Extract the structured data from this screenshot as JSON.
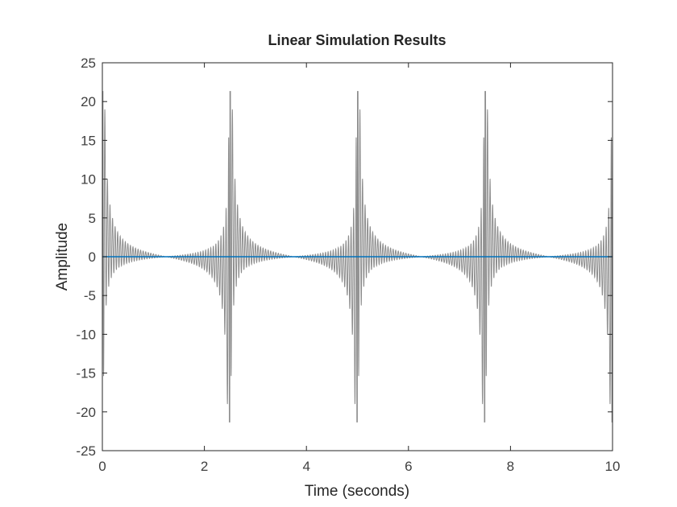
{
  "chart_data": {
    "type": "line",
    "title": "Linear Simulation Results",
    "xlabel": "Time (seconds)",
    "ylabel": "Amplitude",
    "xlim": [
      0,
      10
    ],
    "ylim": [
      -25,
      25
    ],
    "xticks": [
      0,
      2,
      4,
      6,
      8,
      10
    ],
    "yticks": [
      -25,
      -20,
      -15,
      -10,
      -5,
      0,
      5,
      10,
      15,
      20,
      25
    ],
    "grid": false,
    "legend": "none",
    "series": [
      {
        "role": "input",
        "color": "#8c8c8c",
        "description_values": {
          "period": 2.5,
          "peak": 21.2,
          "secondary_peak": 6.2,
          "ripple_frequency_hz": 20
        },
        "x": [
          0,
          0.02,
          0.05,
          0.08,
          0.1,
          0.15,
          0.2,
          0.3,
          0.5,
          0.8,
          1.25,
          1.7,
          2.0,
          2.2,
          2.35,
          2.42,
          2.45,
          2.48,
          2.5,
          2.52,
          2.55,
          2.58,
          2.6,
          2.65,
          2.7,
          2.8,
          3.0,
          3.3,
          3.75,
          4.2,
          4.5,
          4.7,
          4.85,
          4.92,
          4.95,
          4.98,
          5.0,
          5.02,
          5.05,
          5.08,
          5.1,
          5.15,
          5.2,
          5.3,
          5.5,
          5.8,
          6.25,
          6.7,
          7.0,
          7.2,
          7.35,
          7.42,
          7.45,
          7.48,
          7.5,
          7.52,
          7.55,
          7.58,
          7.6,
          7.65,
          7.7,
          7.8,
          8.0,
          8.3,
          8.75,
          9.2,
          9.5,
          9.7,
          9.85,
          9.92,
          9.95,
          9.98,
          10.0
        ],
        "y": [
          21.2,
          15,
          5,
          6.2,
          2.5,
          3.5,
          1.8,
          1.2,
          0.6,
          0.3,
          0,
          -0.3,
          -0.6,
          -1.2,
          -1.8,
          -3.5,
          -2.5,
          -6.2,
          -21.2,
          21.2,
          15,
          5,
          6.2,
          2.5,
          3.5,
          1.8,
          1.2,
          0.6,
          0,
          -0.3,
          -0.6,
          -1.2,
          -1.8,
          -3.5,
          -2.5,
          -6.2,
          -21.2,
          21.2,
          15,
          5,
          6.2,
          2.5,
          3.5,
          1.8,
          1.2,
          0.6,
          0,
          -0.3,
          -0.6,
          -1.2,
          -1.8,
          -3.5,
          -2.5,
          -6.2,
          -21.2,
          21.2,
          15,
          5,
          6.2,
          2.5,
          3.5,
          1.8,
          1.2,
          0.6,
          0,
          -0.3,
          -0.6,
          -1.2,
          -1.8,
          -3.5,
          -2.5,
          -6.2,
          -21.2
        ]
      },
      {
        "role": "response",
        "color": "#0072bd",
        "x": [
          0,
          10
        ],
        "y": [
          0,
          0
        ]
      }
    ]
  }
}
